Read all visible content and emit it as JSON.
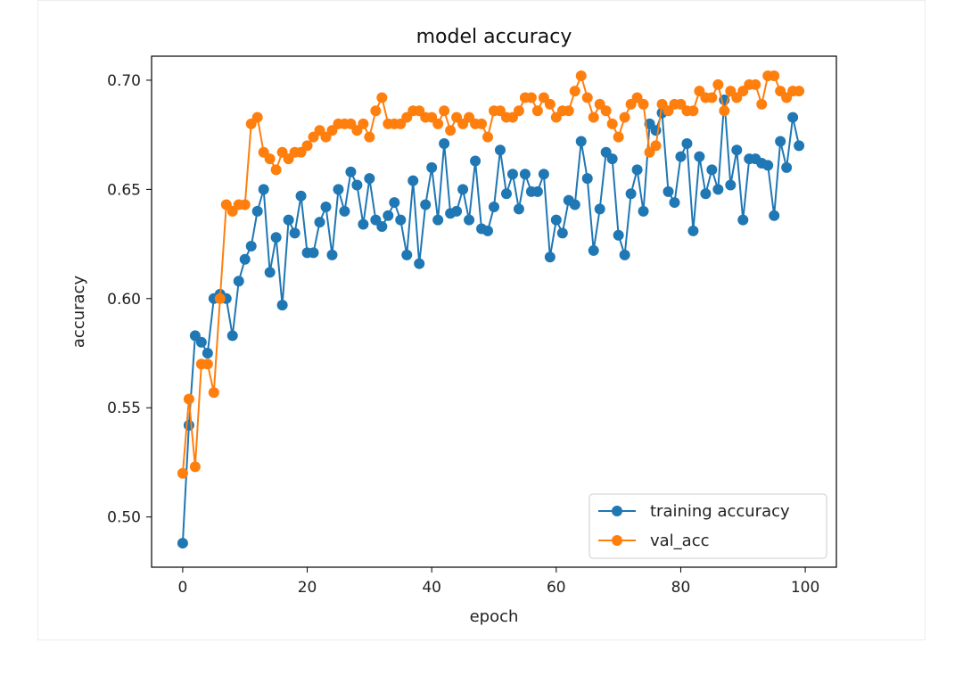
{
  "chart_data": {
    "type": "line",
    "title": "model accuracy",
    "xlabel": "epoch",
    "ylabel": "accuracy",
    "xlim": [
      -5,
      105
    ],
    "ylim": [
      0.477,
      0.711
    ],
    "xticks": [
      0,
      20,
      40,
      60,
      80,
      100
    ],
    "xtick_labels": [
      "0",
      "20",
      "40",
      "60",
      "80",
      "100"
    ],
    "yticks": [
      0.5,
      0.55,
      0.6,
      0.65,
      0.7
    ],
    "ytick_labels": [
      "0.50",
      "0.55",
      "0.60",
      "0.65",
      "0.70"
    ],
    "grid": false,
    "legend_position": "lower-right",
    "x": [
      0,
      1,
      2,
      3,
      4,
      5,
      6,
      7,
      8,
      9,
      10,
      11,
      12,
      13,
      14,
      15,
      16,
      17,
      18,
      19,
      20,
      21,
      22,
      23,
      24,
      25,
      26,
      27,
      28,
      29,
      30,
      31,
      32,
      33,
      34,
      35,
      36,
      37,
      38,
      39,
      40,
      41,
      42,
      43,
      44,
      45,
      46,
      47,
      48,
      49,
      50,
      51,
      52,
      53,
      54,
      55,
      56,
      57,
      58,
      59,
      60,
      61,
      62,
      63,
      64,
      65,
      66,
      67,
      68,
      69,
      70,
      71,
      72,
      73,
      74,
      75,
      76,
      77,
      78,
      79,
      80,
      81,
      82,
      83,
      84,
      85,
      86,
      87,
      88,
      89,
      90,
      91,
      92,
      93,
      94,
      95,
      96,
      97,
      98,
      99
    ],
    "series": [
      {
        "name": "training accuracy",
        "color": "#1f77b4",
        "values": [
          0.488,
          0.542,
          0.583,
          0.58,
          0.575,
          0.6,
          0.602,
          0.6,
          0.583,
          0.608,
          0.618,
          0.624,
          0.64,
          0.65,
          0.612,
          0.628,
          0.597,
          0.636,
          0.63,
          0.647,
          0.621,
          0.621,
          0.635,
          0.642,
          0.62,
          0.65,
          0.64,
          0.658,
          0.652,
          0.634,
          0.655,
          0.636,
          0.633,
          0.638,
          0.644,
          0.636,
          0.62,
          0.654,
          0.616,
          0.643,
          0.66,
          0.636,
          0.671,
          0.639,
          0.64,
          0.65,
          0.636,
          0.663,
          0.632,
          0.631,
          0.642,
          0.668,
          0.648,
          0.657,
          0.641,
          0.657,
          0.649,
          0.649,
          0.657,
          0.619,
          0.636,
          0.63,
          0.645,
          0.643,
          0.672,
          0.655,
          0.622,
          0.641,
          0.667,
          0.664,
          0.629,
          0.62,
          0.648,
          0.659,
          0.64,
          0.68,
          0.677,
          0.685,
          0.649,
          0.644,
          0.665,
          0.671,
          0.631,
          0.665,
          0.648,
          0.659,
          0.65,
          0.691,
          0.652,
          0.668,
          0.636,
          0.664,
          0.664,
          0.662,
          0.661,
          0.638,
          0.672,
          0.66,
          0.683,
          0.67
        ]
      },
      {
        "name": "val_acc",
        "color": "#ff7f0e",
        "values": [
          0.52,
          0.554,
          0.523,
          0.57,
          0.57,
          0.557,
          0.6,
          0.643,
          0.64,
          0.643,
          0.643,
          0.68,
          0.683,
          0.667,
          0.664,
          0.659,
          0.667,
          0.664,
          0.667,
          0.667,
          0.67,
          0.674,
          0.677,
          0.674,
          0.677,
          0.68,
          0.68,
          0.68,
          0.677,
          0.68,
          0.674,
          0.686,
          0.692,
          0.68,
          0.68,
          0.68,
          0.683,
          0.686,
          0.686,
          0.683,
          0.683,
          0.68,
          0.686,
          0.677,
          0.683,
          0.68,
          0.683,
          0.68,
          0.68,
          0.674,
          0.686,
          0.686,
          0.683,
          0.683,
          0.686,
          0.692,
          0.692,
          0.686,
          0.692,
          0.689,
          0.683,
          0.686,
          0.686,
          0.695,
          0.702,
          0.692,
          0.683,
          0.689,
          0.686,
          0.68,
          0.674,
          0.683,
          0.689,
          0.692,
          0.689,
          0.667,
          0.67,
          0.689,
          0.686,
          0.689,
          0.689,
          0.686,
          0.686,
          0.695,
          0.692,
          0.692,
          0.698,
          0.686,
          0.695,
          0.692,
          0.695,
          0.698,
          0.698,
          0.689,
          0.702,
          0.702,
          0.695,
          0.692,
          0.695,
          0.695
        ]
      }
    ]
  }
}
